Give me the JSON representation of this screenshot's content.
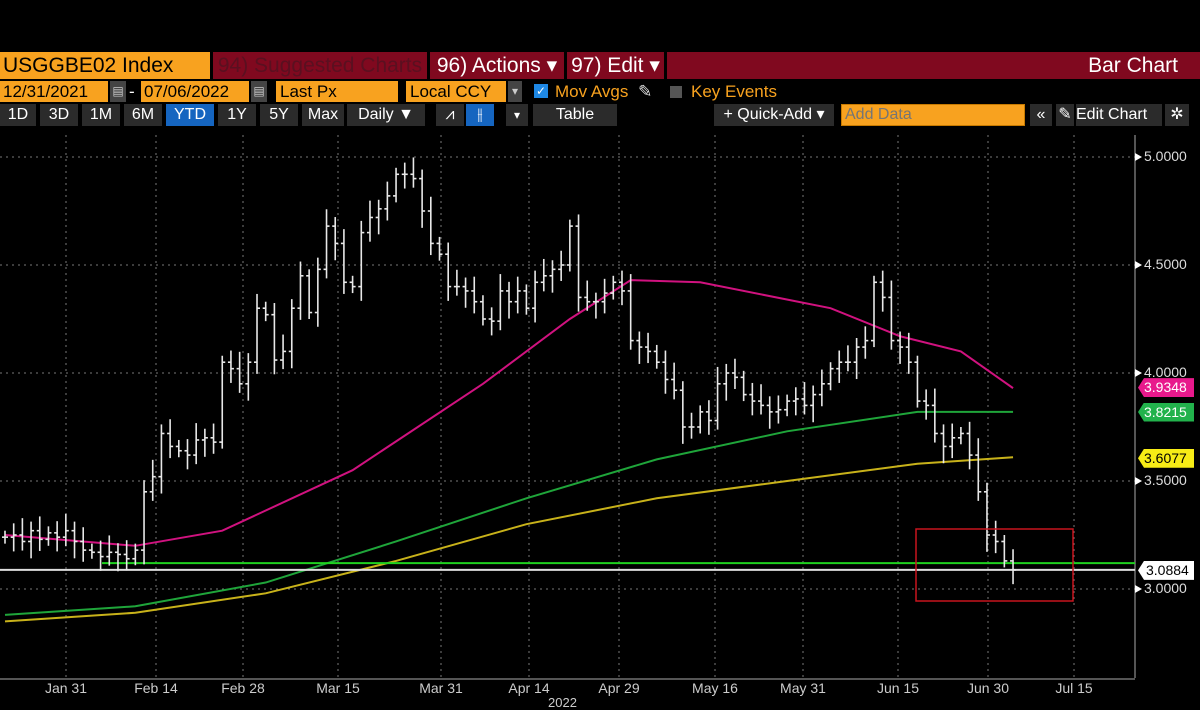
{
  "header": {
    "ticker": "USGGBE02 Index",
    "suggested": "94) Suggested Charts",
    "actions": "96) Actions ▾",
    "edit": "97) Edit ▾",
    "chart_type": "Bar Chart"
  },
  "controls": {
    "start_date": "12/31/2021",
    "dash": "-",
    "end_date": "07/06/2022",
    "field": "Last Px",
    "currency": "Local CCY",
    "mov_avgs": "Mov Avgs",
    "mov_avgs_checked": true,
    "key_events": "Key Events",
    "key_events_checked": false
  },
  "toolbar": {
    "periods": [
      "1D",
      "3D",
      "1M",
      "6M",
      "YTD",
      "1Y",
      "5Y",
      "Max"
    ],
    "active_period": "YTD",
    "frequency": "Daily ▼",
    "table": "Table",
    "quick_add": "+ Quick-Add ▾",
    "add_data_placeholder": "Add Data",
    "collapse": "«",
    "edit_chart": "Edit Chart"
  },
  "colors": {
    "accent": "#f8a21f",
    "header": "#80091f",
    "ma50": "#d0127f",
    "ma100": "#1fa53a",
    "ma200": "#c8b21a"
  },
  "chart_data": {
    "type": "bar",
    "title": "USGGBE02 Index",
    "xlabel": "2022",
    "x_ticks": [
      "Jan 31",
      "Feb 14",
      "Feb 28",
      "Mar 15",
      "Mar 31",
      "Apr 14",
      "Apr 29",
      "May 16",
      "May 31",
      "Jun 15",
      "Jun 30",
      "Jul 15"
    ],
    "y_ticks": [
      "5.0000",
      "4.5000",
      "4.0000",
      "3.5000",
      "3.0000"
    ],
    "ylim": [
      2.59,
      5.1
    ],
    "grid": true,
    "close": [
      3.24,
      3.25,
      3.22,
      3.27,
      3.23,
      3.26,
      3.24,
      3.27,
      3.22,
      3.18,
      3.17,
      3.15,
      3.17,
      3.16,
      3.14,
      3.18,
      3.45,
      3.52,
      3.72,
      3.66,
      3.64,
      3.62,
      3.69,
      3.7,
      3.68,
      4.05,
      4.02,
      3.95,
      4.05,
      4.3,
      4.27,
      4.06,
      4.1,
      4.3,
      4.45,
      4.28,
      4.48,
      4.68,
      4.6,
      4.42,
      4.4,
      4.65,
      4.72,
      4.76,
      4.82,
      4.92,
      4.92,
      4.9,
      4.75,
      4.6,
      4.55,
      4.4,
      4.4,
      4.38,
      4.33,
      4.25,
      4.24,
      4.38,
      4.33,
      4.38,
      4.3,
      4.42,
      4.45,
      4.48,
      4.5,
      4.68,
      4.35,
      4.33,
      4.33,
      4.37,
      4.42,
      4.38,
      4.15,
      4.12,
      4.1,
      4.05,
      3.97,
      3.92,
      3.75,
      3.75,
      3.82,
      3.78,
      3.95,
      4.0,
      3.98,
      3.9,
      3.87,
      3.85,
      3.82,
      3.83,
      3.87,
      3.88,
      3.85,
      3.9,
      3.95,
      4.02,
      4.05,
      4.05,
      4.12,
      4.15,
      4.42,
      4.35,
      4.15,
      4.12,
      4.05,
      3.87,
      3.85,
      3.72,
      3.66,
      3.7,
      3.72,
      3.62,
      3.45,
      3.25,
      3.22,
      3.13,
      3.0884
    ],
    "moving_averages": [
      {
        "name": "MA50",
        "color": "#d0127f",
        "last": "3.9348",
        "points": [
          [
            0,
            3.25
          ],
          [
            15,
            3.2
          ],
          [
            25,
            3.27
          ],
          [
            40,
            3.55
          ],
          [
            55,
            3.95
          ],
          [
            65,
            4.25
          ],
          [
            72,
            4.43
          ],
          [
            80,
            4.42
          ],
          [
            95,
            4.3
          ],
          [
            103,
            4.17
          ],
          [
            110,
            4.1
          ],
          [
            116,
            3.93
          ]
        ]
      },
      {
        "name": "MA100",
        "color": "#1fa53a",
        "last": "3.8215",
        "points": [
          [
            0,
            2.88
          ],
          [
            15,
            2.92
          ],
          [
            30,
            3.03
          ],
          [
            45,
            3.22
          ],
          [
            60,
            3.42
          ],
          [
            75,
            3.6
          ],
          [
            90,
            3.73
          ],
          [
            105,
            3.82
          ],
          [
            116,
            3.82
          ]
        ]
      },
      {
        "name": "MA200",
        "color": "#c8b21a",
        "last": "3.6077",
        "points": [
          [
            0,
            2.85
          ],
          [
            15,
            2.89
          ],
          [
            30,
            2.98
          ],
          [
            45,
            3.13
          ],
          [
            60,
            3.3
          ],
          [
            75,
            3.42
          ],
          [
            90,
            3.5
          ],
          [
            105,
            3.58
          ],
          [
            116,
            3.61
          ]
        ]
      }
    ],
    "support_line": 3.12,
    "last_price": "3.0884"
  }
}
